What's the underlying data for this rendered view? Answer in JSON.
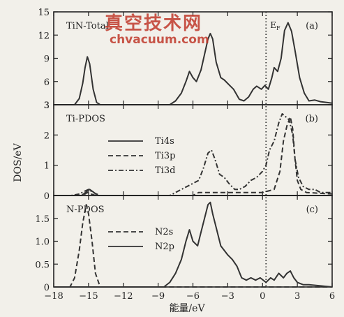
{
  "watermark": {
    "cn": "真空技术网",
    "url": "chvacuum.com",
    "color": "#c0392b"
  },
  "chart_data": {
    "type": "line",
    "xlabel": "能量/eV",
    "ylabel": "DOS/eV",
    "x_ticks": [
      -18,
      -15,
      -12,
      -9,
      -6,
      -3,
      0,
      3,
      6
    ],
    "xlim": [
      -18,
      6
    ],
    "fermi_level_x": 0.3,
    "fermi_label": "E_F",
    "panels": [
      {
        "id": "a",
        "panel_label": "(a)",
        "title": "TiN-Total",
        "ylim": [
          3,
          15
        ],
        "y_ticks": [
          3,
          6,
          9,
          12,
          15
        ],
        "series": [
          {
            "name": "",
            "style": "solid",
            "points": [
              [
                -18,
                3
              ],
              [
                -16.2,
                3
              ],
              [
                -15.8,
                3.8
              ],
              [
                -15.5,
                5.8
              ],
              [
                -15.3,
                7.8
              ],
              [
                -15.1,
                9.2
              ],
              [
                -14.9,
                8.3
              ],
              [
                -14.6,
                5
              ],
              [
                -14.3,
                3.3
              ],
              [
                -14,
                3
              ],
              [
                -8,
                3
              ],
              [
                -7.5,
                3.5
              ],
              [
                -7,
                4.5
              ],
              [
                -6.6,
                6
              ],
              [
                -6.3,
                7.3
              ],
              [
                -6,
                6.5
              ],
              [
                -5.7,
                6
              ],
              [
                -5.3,
                7.5
              ],
              [
                -5,
                9.5
              ],
              [
                -4.7,
                11.5
              ],
              [
                -4.5,
                12.2
              ],
              [
                -4.3,
                11.5
              ],
              [
                -4,
                8.5
              ],
              [
                -3.6,
                6.5
              ],
              [
                -3.3,
                6.2
              ],
              [
                -2.9,
                5.6
              ],
              [
                -2.5,
                5
              ],
              [
                -2,
                3.7
              ],
              [
                -1.6,
                3.5
              ],
              [
                -1.2,
                4
              ],
              [
                -0.8,
                5
              ],
              [
                -0.5,
                5.4
              ],
              [
                -0.1,
                5
              ],
              [
                0.2,
                5.5
              ],
              [
                0.5,
                5
              ],
              [
                0.8,
                6.5
              ],
              [
                1,
                7.8
              ],
              [
                1.3,
                7.3
              ],
              [
                1.6,
                9
              ],
              [
                1.9,
                12.6
              ],
              [
                2.2,
                13.6
              ],
              [
                2.5,
                12.5
              ],
              [
                2.8,
                10
              ],
              [
                3.2,
                6.5
              ],
              [
                3.6,
                4.5
              ],
              [
                4,
                3.5
              ],
              [
                4.5,
                3.6
              ],
              [
                5,
                3.4
              ],
              [
                6,
                3.2
              ]
            ]
          }
        ]
      },
      {
        "id": "b",
        "panel_label": "(b)",
        "title": "Ti-PDOS",
        "ylim": [
          0,
          3
        ],
        "y_ticks": [
          0,
          1,
          2,
          3
        ],
        "series": [
          {
            "name": "Ti4s",
            "style": "solid",
            "points": [
              [
                -18,
                0
              ],
              [
                -15.6,
                0
              ],
              [
                -15.2,
                0.12
              ],
              [
                -14.9,
                0.2
              ],
              [
                -14.6,
                0.12
              ],
              [
                -14.2,
                0
              ],
              [
                6,
                0
              ]
            ]
          },
          {
            "name": "Ti3p",
            "style": "dashed",
            "points": [
              [
                -18,
                0
              ],
              [
                -15.5,
                0
              ],
              [
                -15.1,
                0.1
              ],
              [
                -14.8,
                0.05
              ],
              [
                -14.4,
                0
              ],
              [
                -6,
                0
              ],
              [
                -5.5,
                0.1
              ],
              [
                -5,
                0.1
              ],
              [
                -3,
                0.1
              ],
              [
                -1,
                0.1
              ],
              [
                0,
                0.1
              ],
              [
                1,
                0.2
              ],
              [
                1.5,
                0.8
              ],
              [
                1.8,
                1.8
              ],
              [
                2.1,
                2.3
              ],
              [
                2.4,
                2.6
              ],
              [
                2.6,
                2.2
              ],
              [
                2.8,
                1.2
              ],
              [
                3,
                0.5
              ],
              [
                3.3,
                0.2
              ],
              [
                3.8,
                0.1
              ],
              [
                6,
                0.05
              ]
            ]
          },
          {
            "name": "Ti3d",
            "style": "dashdot",
            "points": [
              [
                -18,
                0
              ],
              [
                -16.5,
                0
              ],
              [
                -15.8,
                0.05
              ],
              [
                -15.3,
                0.15
              ],
              [
                -15,
                0.2
              ],
              [
                -14.6,
                0.1
              ],
              [
                -14,
                0
              ],
              [
                -8,
                0
              ],
              [
                -7.5,
                0.1
              ],
              [
                -7,
                0.2
              ],
              [
                -6.5,
                0.3
              ],
              [
                -6,
                0.4
              ],
              [
                -5.5,
                0.5
              ],
              [
                -5.1,
                0.9
              ],
              [
                -4.7,
                1.4
              ],
              [
                -4.4,
                1.5
              ],
              [
                -4.1,
                1.2
              ],
              [
                -3.7,
                0.7
              ],
              [
                -3.3,
                0.6
              ],
              [
                -2.9,
                0.4
              ],
              [
                -2.4,
                0.2
              ],
              [
                -2,
                0.2
              ],
              [
                -1.5,
                0.3
              ],
              [
                -1,
                0.5
              ],
              [
                -0.5,
                0.6
              ],
              [
                0,
                0.8
              ],
              [
                0.3,
                1
              ],
              [
                0.6,
                1.5
              ],
              [
                1,
                1.8
              ],
              [
                1.4,
                2.4
              ],
              [
                1.7,
                2.7
              ],
              [
                2,
                2.6
              ],
              [
                2.3,
                2.5
              ],
              [
                2.6,
                2
              ],
              [
                2.8,
                1.2
              ],
              [
                3.1,
                0.6
              ],
              [
                3.5,
                0.3
              ],
              [
                4,
                0.2
              ],
              [
                4.5,
                0.2
              ],
              [
                5,
                0.1
              ],
              [
                6,
                0.1
              ]
            ]
          }
        ]
      },
      {
        "id": "c",
        "panel_label": "(c)",
        "title": "N-PDOS",
        "ylim": [
          0,
          2
        ],
        "y_ticks": [
          0,
          0.5,
          1.0,
          1.5
        ],
        "y_tick_labels": [
          "0",
          "0.5",
          "1.0",
          "1.5"
        ],
        "series": [
          {
            "name": "N2s",
            "style": "dashed",
            "points": [
              [
                -18,
                0
              ],
              [
                -16.6,
                0
              ],
              [
                -16.2,
                0.2
              ],
              [
                -15.8,
                0.8
              ],
              [
                -15.5,
                1.4
              ],
              [
                -15.2,
                1.8
              ],
              [
                -15,
                1.6
              ],
              [
                -14.7,
                1
              ],
              [
                -14.4,
                0.3
              ],
              [
                -14,
                0
              ],
              [
                6,
                0
              ]
            ]
          },
          {
            "name": "N2p",
            "style": "solid",
            "points": [
              [
                -18,
                0
              ],
              [
                -8.5,
                0
              ],
              [
                -8,
                0.1
              ],
              [
                -7.5,
                0.3
              ],
              [
                -7,
                0.6
              ],
              [
                -6.6,
                1
              ],
              [
                -6.3,
                1.25
              ],
              [
                -6,
                1
              ],
              [
                -5.6,
                0.9
              ],
              [
                -5.3,
                1.2
              ],
              [
                -5,
                1.5
              ],
              [
                -4.7,
                1.8
              ],
              [
                -4.5,
                1.85
              ],
              [
                -4.3,
                1.6
              ],
              [
                -4,
                1.3
              ],
              [
                -3.6,
                0.9
              ],
              [
                -3.3,
                0.8
              ],
              [
                -3,
                0.7
              ],
              [
                -2.6,
                0.6
              ],
              [
                -2.2,
                0.45
              ],
              [
                -1.8,
                0.2
              ],
              [
                -1.4,
                0.15
              ],
              [
                -1,
                0.2
              ],
              [
                -0.6,
                0.15
              ],
              [
                -0.2,
                0.2
              ],
              [
                0.3,
                0.1
              ],
              [
                0.7,
                0.2
              ],
              [
                1,
                0.15
              ],
              [
                1.4,
                0.3
              ],
              [
                1.8,
                0.2
              ],
              [
                2.1,
                0.3
              ],
              [
                2.4,
                0.35
              ],
              [
                2.7,
                0.2
              ],
              [
                3,
                0.1
              ],
              [
                3.5,
                0.05
              ],
              [
                4,
                0.05
              ],
              [
                6,
                0
              ]
            ]
          }
        ]
      }
    ]
  }
}
